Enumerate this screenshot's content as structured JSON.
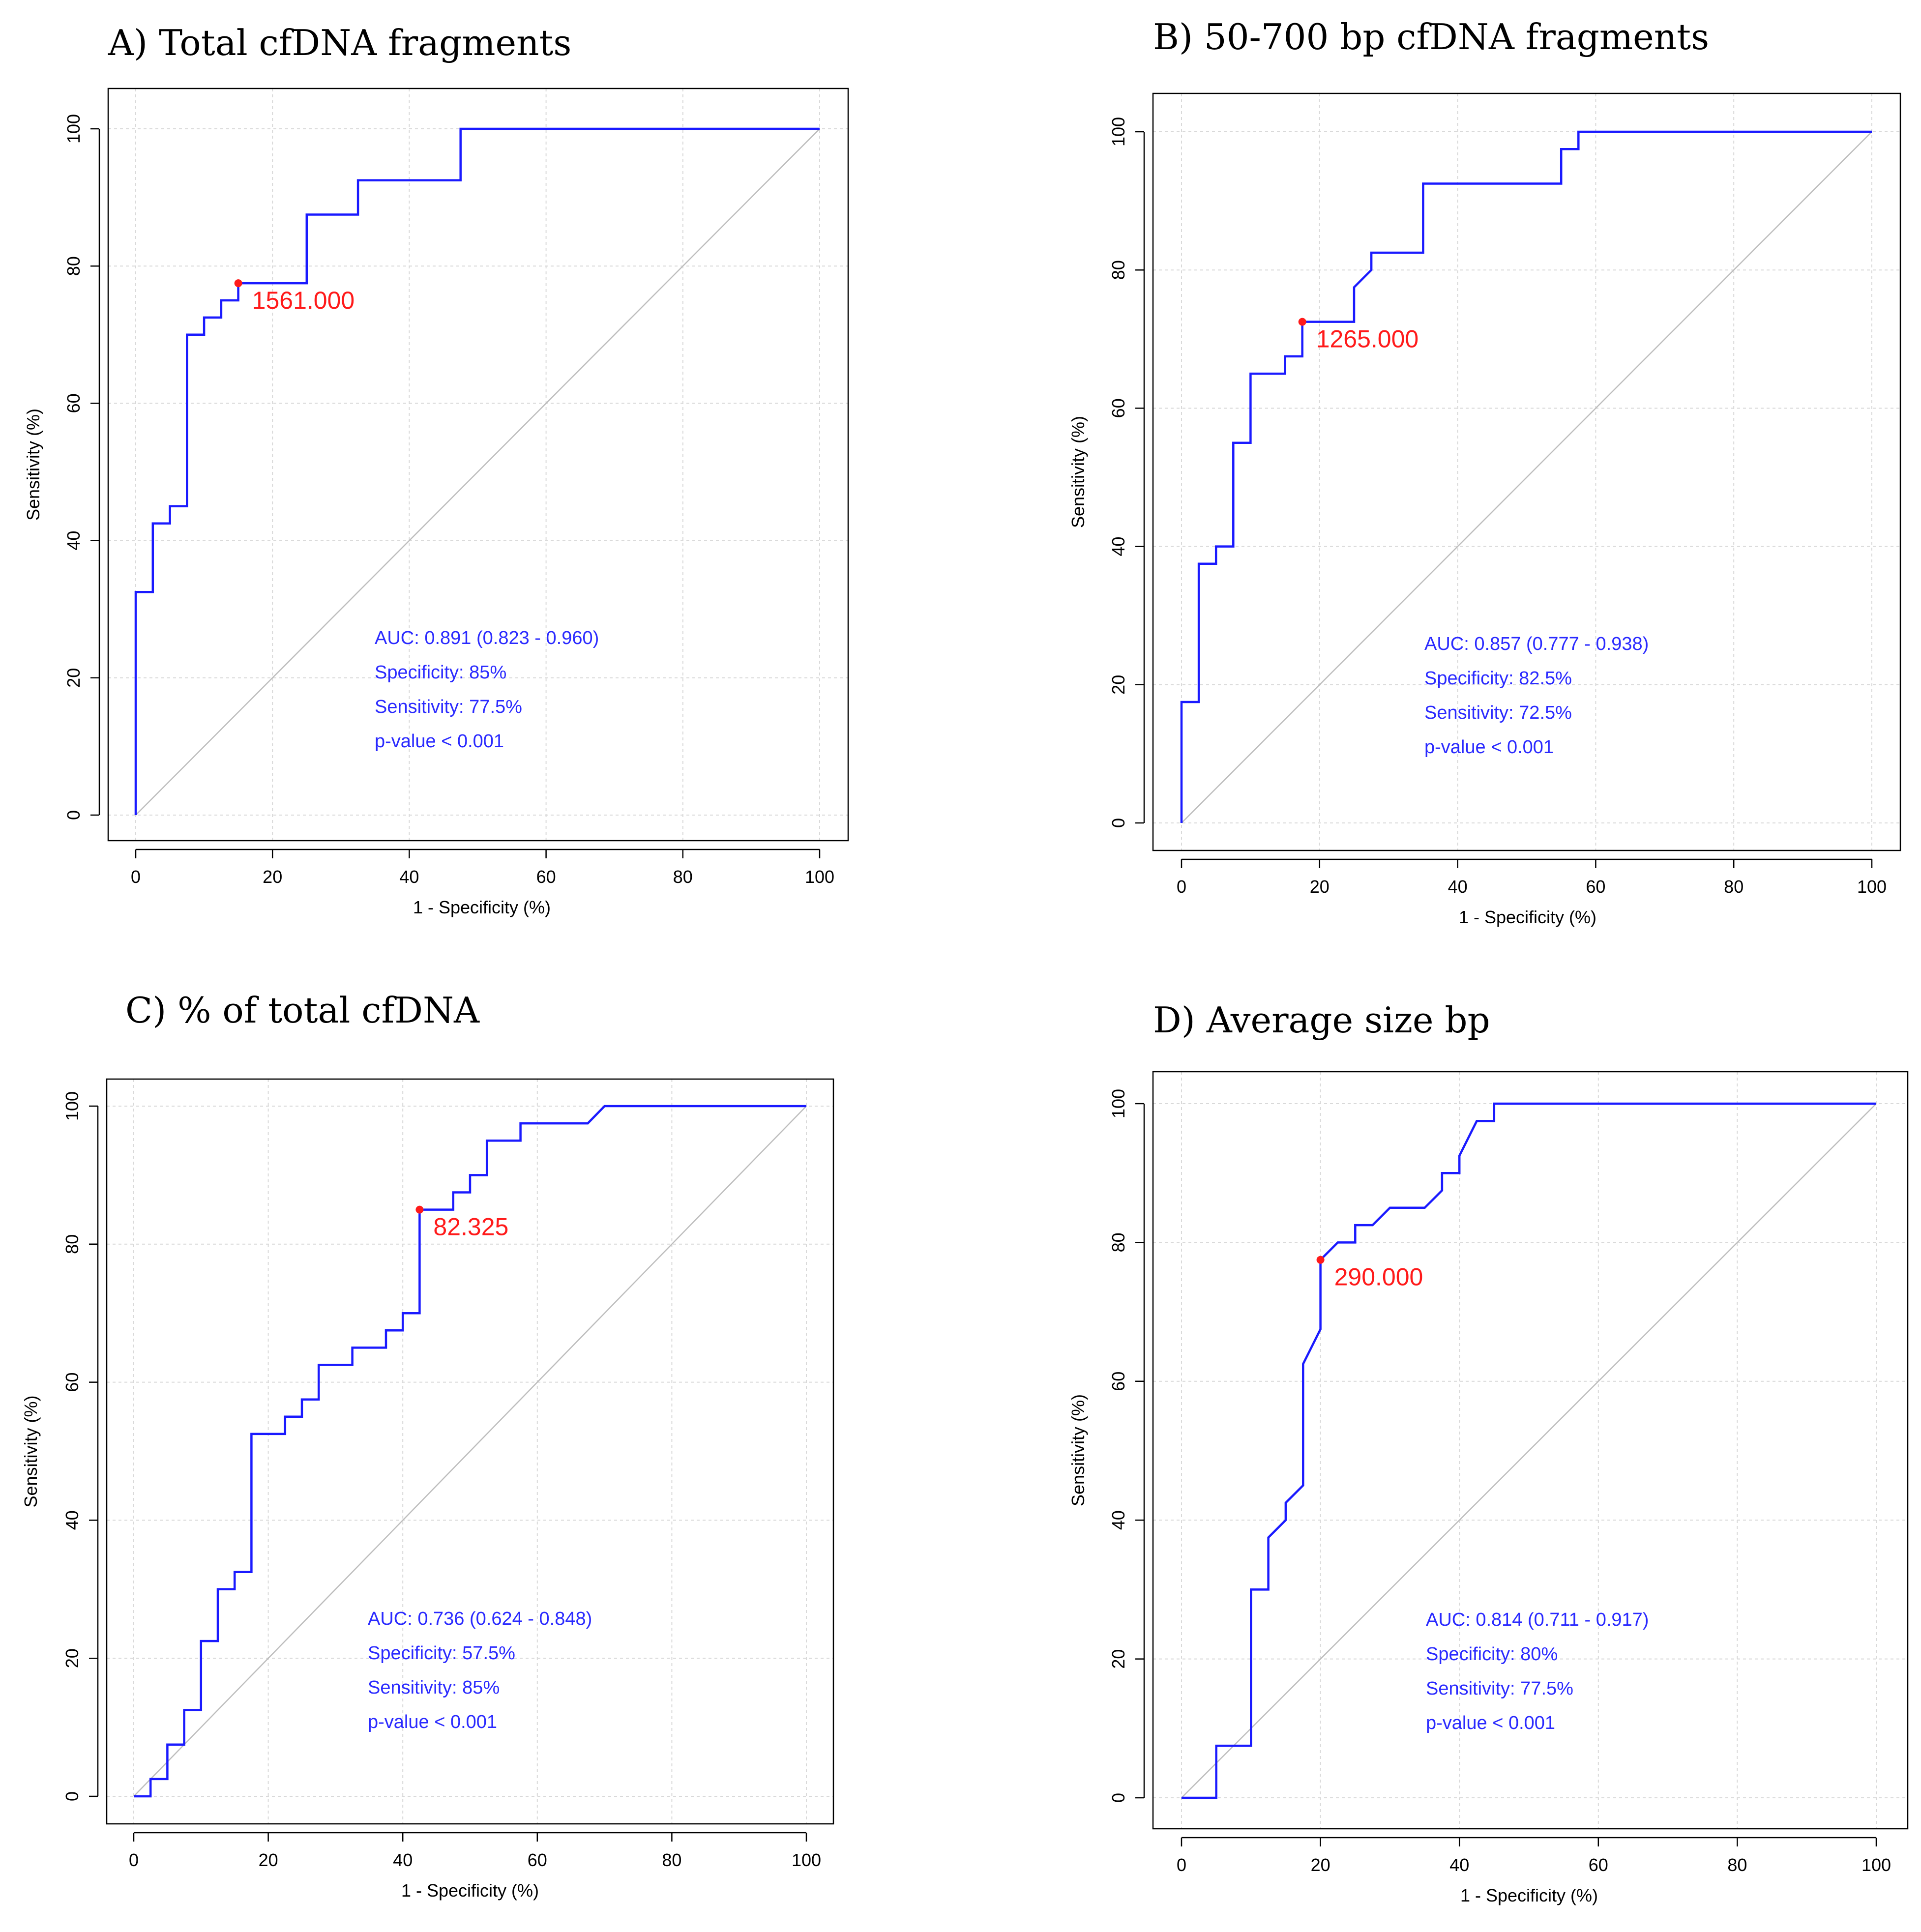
{
  "colors": {
    "curve": "#1a1aff",
    "stats_text": "#2a2aff",
    "threshold": "#ff1a1a",
    "diagonal": "#bdbdbd",
    "grid": "#d9d9d9"
  },
  "chart_data": [
    {
      "type": "line",
      "panel": "A",
      "title": "A) Total cfDNA fragments",
      "xlabel": "1 - Specificity (%)",
      "ylabel": "Sensitivity (%)",
      "xlim": [
        0,
        100
      ],
      "ylim": [
        0,
        100
      ],
      "xticks": [
        0,
        20,
        40,
        60,
        80,
        100
      ],
      "yticks": [
        0,
        20,
        40,
        60,
        80,
        100
      ],
      "grid": true,
      "series": [
        {
          "name": "ROC curve",
          "x": [
            0,
            0,
            2.5,
            2.5,
            5,
            5,
            7.5,
            7.5,
            10,
            10,
            12.5,
            12.5,
            15,
            15,
            25,
            25,
            32.5,
            32.5,
            47.5,
            47.5,
            100
          ],
          "y": [
            0,
            32.5,
            32.5,
            42.5,
            42.5,
            45,
            45,
            70,
            70,
            72.5,
            72.5,
            75,
            75,
            77.5,
            77.5,
            87.5,
            87.5,
            92.5,
            92.5,
            100,
            100
          ]
        }
      ],
      "threshold_point": {
        "x": 15,
        "y": 77.5,
        "label": "1561.000"
      },
      "stats": [
        "AUC: 0.891 (0.823 - 0.960)",
        "Specificity: 85%",
        "Sensitivity: 77.5%",
        "p-value < 0.001"
      ]
    },
    {
      "type": "line",
      "panel": "B",
      "title": "B) 50-700 bp cfDNA fragments",
      "xlabel": "1 - Specificity (%)",
      "ylabel": "Sensitivity (%)",
      "xlim": [
        0,
        100
      ],
      "ylim": [
        0,
        100
      ],
      "xticks": [
        0,
        20,
        40,
        60,
        80,
        100
      ],
      "yticks": [
        0,
        20,
        40,
        60,
        80,
        100
      ],
      "grid": true,
      "series": [
        {
          "name": "ROC curve",
          "x": [
            0,
            0,
            2.5,
            2.5,
            5,
            5,
            7.5,
            7.5,
            10,
            10,
            15,
            15,
            17.5,
            17.5,
            25,
            25,
            27.5,
            27.5,
            35,
            35,
            55,
            55,
            57.5,
            57.5,
            100
          ],
          "y": [
            0,
            17.5,
            17.5,
            37.5,
            37.5,
            40,
            40,
            55,
            55,
            65,
            65,
            67.5,
            67.5,
            72.5,
            72.5,
            77.5,
            80,
            82.5,
            82.5,
            92.5,
            92.5,
            97.5,
            97.5,
            100,
            100
          ]
        }
      ],
      "threshold_point": {
        "x": 17.5,
        "y": 72.5,
        "label": "1265.000"
      },
      "stats": [
        "AUC: 0.857 (0.777 - 0.938)",
        "Specificity: 82.5%",
        "Sensitivity: 72.5%",
        "p-value < 0.001"
      ]
    },
    {
      "type": "line",
      "panel": "C",
      "title": "C) % of total cfDNA",
      "xlabel": "1 - Specificity (%)",
      "ylabel": "Sensitivity (%)",
      "xlim": [
        0,
        100
      ],
      "ylim": [
        0,
        100
      ],
      "xticks": [
        0,
        20,
        40,
        60,
        80,
        100
      ],
      "yticks": [
        0,
        20,
        40,
        60,
        80,
        100
      ],
      "grid": true,
      "series": [
        {
          "name": "ROC curve",
          "x": [
            0,
            2.5,
            2.5,
            5,
            5,
            7.5,
            7.5,
            10,
            10,
            12.5,
            12.5,
            15,
            15,
            17.5,
            17.5,
            22.5,
            22.5,
            25,
            25,
            27.5,
            27.5,
            32.5,
            32.5,
            37.5,
            37.5,
            40,
            40,
            42.5,
            42.5,
            47.5,
            47.5,
            50,
            50,
            52.5,
            52.5,
            57.5,
            57.5,
            67.5,
            70,
            100
          ],
          "y": [
            0,
            0,
            2.5,
            2.5,
            7.5,
            7.5,
            12.5,
            12.5,
            22.5,
            22.5,
            30,
            30,
            32.5,
            32.5,
            52.5,
            52.5,
            55,
            55,
            57.5,
            57.5,
            62.5,
            62.5,
            65,
            65,
            67.5,
            67.5,
            70,
            70,
            85,
            85,
            87.5,
            87.5,
            90,
            90,
            95,
            95,
            97.5,
            97.5,
            100,
            100
          ]
        }
      ],
      "threshold_point": {
        "x": 42.5,
        "y": 85,
        "label": "82.325"
      },
      "stats": [
        "AUC: 0.736 (0.624 - 0.848)",
        "Specificity: 57.5%",
        "Sensitivity: 85%",
        "p-value < 0.001"
      ]
    },
    {
      "type": "line",
      "panel": "D",
      "title": "D) Average size bp",
      "xlabel": "1 - Specificity (%)",
      "ylabel": "Sensitivity (%)",
      "xlim": [
        0,
        100
      ],
      "ylim": [
        0,
        100
      ],
      "xticks": [
        0,
        20,
        40,
        60,
        80,
        100
      ],
      "yticks": [
        0,
        20,
        40,
        60,
        80,
        100
      ],
      "grid": true,
      "series": [
        {
          "name": "ROC curve",
          "x": [
            0,
            5,
            5,
            10,
            10,
            12.5,
            12.5,
            15,
            15,
            17.5,
            17.5,
            20,
            20,
            22.5,
            25,
            25,
            27.5,
            30,
            35,
            37.5,
            37.5,
            40,
            40,
            42.5,
            45,
            45,
            100
          ],
          "y": [
            0,
            0,
            7.5,
            7.5,
            30,
            30,
            37.5,
            40,
            42.5,
            45,
            62.5,
            67.5,
            77.5,
            80,
            80,
            82.5,
            82.5,
            85,
            85,
            87.5,
            90,
            90,
            92.5,
            97.5,
            97.5,
            100,
            100
          ]
        }
      ],
      "threshold_point": {
        "x": 20,
        "y": 77.5,
        "label": "290.000"
      },
      "stats": [
        "AUC: 0.814 (0.711 - 0.917)",
        "Specificity: 80%",
        "Sensitivity: 77.5%",
        "p-value < 0.001"
      ]
    }
  ]
}
